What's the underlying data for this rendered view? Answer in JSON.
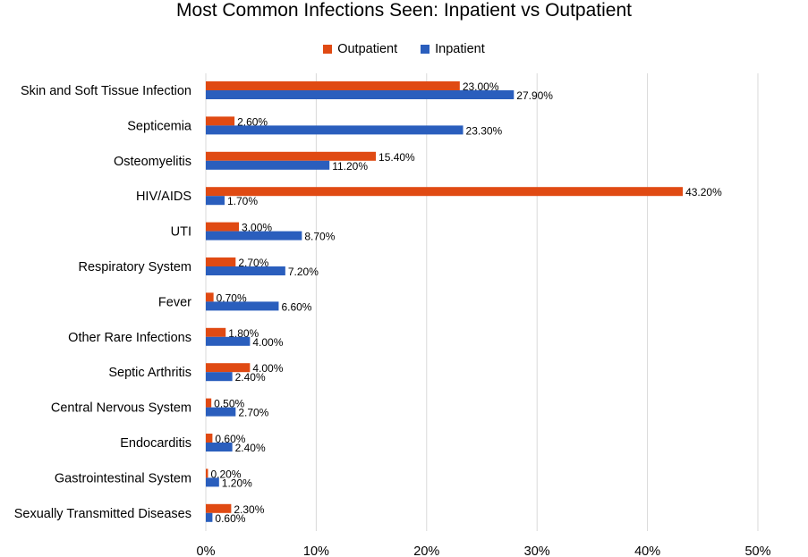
{
  "chart_data": {
    "type": "bar",
    "orientation": "horizontal",
    "title": "Most Common Infections Seen: Inpatient vs Outpatient",
    "categories": [
      "Skin and Soft Tissue Infection",
      "Septicemia",
      "Osteomyelitis",
      "HIV/AIDS",
      "UTI",
      "Respiratory System",
      "Fever",
      "Other Rare Infections",
      "Septic Arthritis",
      "Central Nervous System",
      "Endocarditis",
      "Gastrointestinal System",
      "Sexually Transmitted Diseases"
    ],
    "series": [
      {
        "name": "Outpatient",
        "color": "#E04A13",
        "values": [
          23.0,
          2.6,
          15.4,
          43.2,
          3.0,
          2.7,
          0.7,
          1.8,
          4.0,
          0.5,
          0.6,
          0.2,
          2.3
        ],
        "labels": [
          "23.00%",
          "2.60%",
          "15.40%",
          "43.20%",
          "3.00%",
          "2.70%",
          "0.70%",
          "1.80%",
          "4.00%",
          "0.50%",
          "0.60%",
          "0.20%",
          "2.30%"
        ]
      },
      {
        "name": "Inpatient",
        "color": "#2A5EBD",
        "values": [
          27.9,
          23.3,
          11.2,
          1.7,
          8.7,
          7.2,
          6.6,
          4.0,
          2.4,
          2.7,
          2.4,
          1.2,
          0.6
        ],
        "labels": [
          "27.90%",
          "23.30%",
          "11.20%",
          "1.70%",
          "8.70%",
          "7.20%",
          "6.60%",
          "4.00%",
          "2.40%",
          "2.70%",
          "2.40%",
          "1.20%",
          "0.60%"
        ]
      }
    ],
    "xlim": [
      0,
      50
    ],
    "xticks": [
      0,
      10,
      20,
      30,
      40,
      50
    ],
    "xtick_labels": [
      "0%",
      "10%",
      "20%",
      "30%",
      "40%",
      "50%"
    ],
    "xlabel": "",
    "ylabel": "",
    "grid": true,
    "legend_position": "top-center"
  }
}
